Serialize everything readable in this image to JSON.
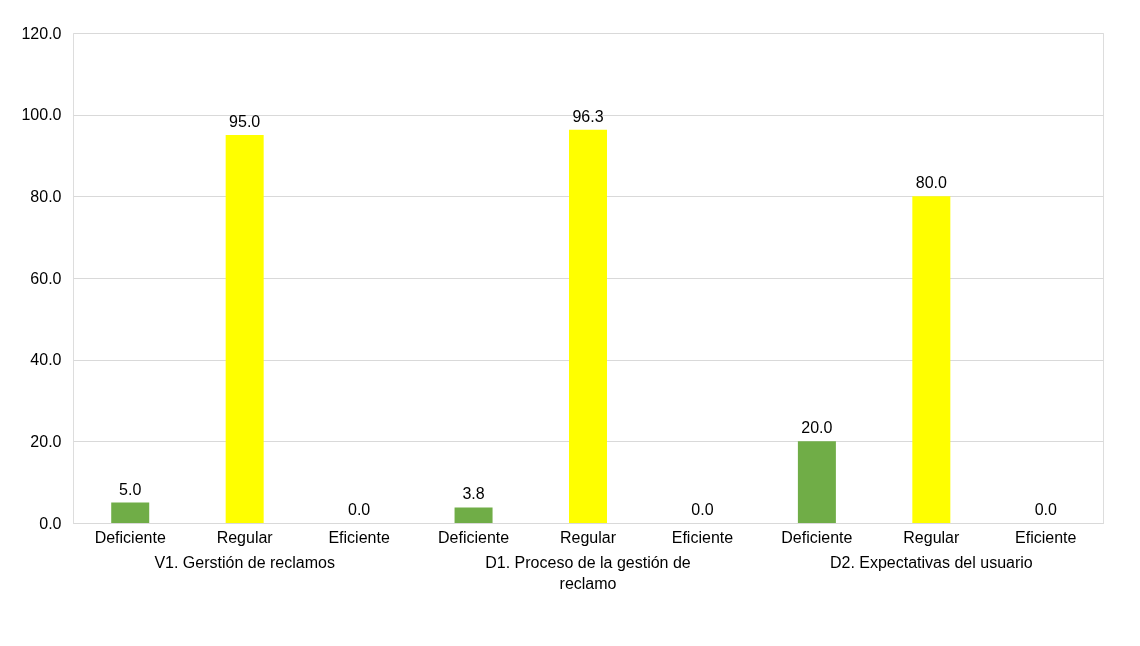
{
  "chart_data": {
    "type": "bar",
    "categories": [
      "Deficiente",
      "Regular",
      "Eficiente",
      "Deficiente",
      "Regular",
      "Eficiente",
      "Deficiente",
      "Regular",
      "Eficiente"
    ],
    "values": [
      5.0,
      95.0,
      0.0,
      3.8,
      96.3,
      0.0,
      20.0,
      80.0,
      0.0
    ],
    "colors": [
      "#70ad47",
      "#ffff00",
      "#a5a5a5",
      "#70ad47",
      "#ffff00",
      "#a5a5a5",
      "#70ad47",
      "#ffff00",
      "#a5a5a5"
    ],
    "value_labels": [
      "5.0",
      "95.0",
      "0.0",
      "3.8",
      "96.3",
      "0.0",
      "20.0",
      "80.0",
      "0.0"
    ],
    "annotations": [
      "V1. Gerstión de reclamos",
      "D1. Proceso de la gestión de reclamo",
      "D2. Expectativas del usuario"
    ],
    "ylim": [
      0,
      120
    ],
    "yticks": [
      {
        "value": 0,
        "label": "0.0"
      },
      {
        "value": 20,
        "label": "20.0"
      },
      {
        "value": 40,
        "label": "40.0"
      },
      {
        "value": 60,
        "label": "60.0"
      },
      {
        "value": 80,
        "label": "80.0"
      },
      {
        "value": 100,
        "label": "100.0"
      },
      {
        "value": 120,
        "label": "120.0"
      }
    ],
    "grid": "y"
  }
}
